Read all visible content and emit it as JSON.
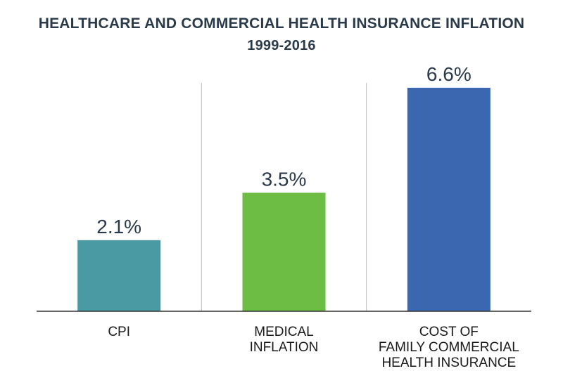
{
  "chart_data": {
    "type": "bar",
    "title": "HEALTHCARE AND COMMERCIAL HEALTH INSURANCE INFLATION",
    "subtitle": "1999-2016",
    "categories": [
      [
        "CPI"
      ],
      [
        "MEDICAL",
        "INFLATION"
      ],
      [
        "COST OF",
        "FAMILY COMMERCIAL",
        "HEALTH INSURANCE"
      ]
    ],
    "values": [
      2.1,
      3.5,
      6.6
    ],
    "value_labels": [
      "2.1%",
      "3.5%",
      "6.6%"
    ],
    "colors": [
      "#4a9aa3",
      "#6dbd45",
      "#3b67b0"
    ],
    "ylim": [
      0,
      7.2
    ],
    "grid": false,
    "xlabel": "",
    "ylabel": ""
  }
}
